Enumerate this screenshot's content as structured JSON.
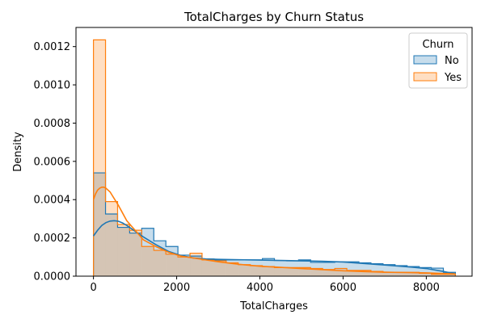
{
  "chart_data": {
    "type": "histogram",
    "title": "TotalCharges by Churn Status",
    "xlabel": "TotalCharges",
    "ylabel": "Density",
    "xlim": [
      -420,
      9100
    ],
    "ylim": [
      0,
      0.0013
    ],
    "x_ticks": [
      0,
      2000,
      4000,
      6000,
      8000
    ],
    "x_tick_labels": [
      "0",
      "2000",
      "4000",
      "6000",
      "8000"
    ],
    "y_ticks": [
      0,
      0.0002,
      0.0004,
      0.0006,
      0.0008,
      0.001,
      0.0012
    ],
    "y_tick_labels": [
      "0.0000",
      "0.0002",
      "0.0004",
      "0.0006",
      "0.0008",
      "0.0010",
      "0.0012"
    ],
    "grid": false,
    "bin_edges": [
      0,
      290,
      580,
      870,
      1160,
      1450,
      1740,
      2030,
      2320,
      2610,
      2900,
      3190,
      3480,
      3770,
      4060,
      4350,
      4640,
      4930,
      5220,
      5510,
      5800,
      6090,
      6380,
      6670,
      6960,
      7250,
      7540,
      7830,
      8120,
      8410,
      8700
    ],
    "series": [
      {
        "name": "No",
        "color": "#1f77b4",
        "densities": [
          0.00054,
          0.000325,
          0.000255,
          0.000225,
          0.00025,
          0.000185,
          0.000155,
          0.00011,
          0.000105,
          9e-05,
          8.5e-05,
          8.5e-05,
          8.5e-05,
          8.5e-05,
          9.2e-05,
          8.2e-05,
          8e-05,
          8.5e-05,
          7.2e-05,
          7.2e-05,
          7.5e-05,
          7.5e-05,
          7e-05,
          6.5e-05,
          6e-05,
          5.5e-05,
          5e-05,
          4.5e-05,
          4.2e-05,
          2e-05
        ],
        "kde_x": [
          0,
          100,
          200,
          300,
          400,
          500,
          600,
          700,
          800,
          1000,
          1200,
          1500,
          1800,
          2100,
          2400,
          2700,
          3000,
          3500,
          4000,
          4500,
          5000,
          5500,
          6000,
          6500,
          7000,
          7500,
          8000,
          8400,
          8700
        ],
        "kde_y": [
          0.00021,
          0.00024,
          0.000265,
          0.00028,
          0.000288,
          0.00029,
          0.000287,
          0.000278,
          0.000265,
          0.000235,
          0.000205,
          0.000165,
          0.00013,
          0.000108,
          9.5e-05,
          9e-05,
          8.8e-05,
          8.6e-05,
          8.4e-05,
          8.2e-05,
          8e-05,
          7.8e-05,
          7.4e-05,
          6.6e-05,
          5.8e-05,
          5e-05,
          4e-05,
          2.5e-05,
          1.2e-05
        ]
      },
      {
        "name": "Yes",
        "color": "#ff7f0e",
        "densities": [
          0.001235,
          0.00039,
          0.00027,
          0.00024,
          0.000155,
          0.000135,
          0.000115,
          0.0001,
          0.00012,
          8.5e-05,
          8e-05,
          7e-05,
          6e-05,
          5.5e-05,
          5e-05,
          4.5e-05,
          4.5e-05,
          4.5e-05,
          4e-05,
          3.5e-05,
          4e-05,
          3e-05,
          3e-05,
          2.5e-05,
          2e-05,
          2e-05,
          2e-05,
          1.5e-05,
          1e-05,
          1e-05
        ],
        "kde_x": [
          0,
          50,
          100,
          150,
          200,
          250,
          300,
          400,
          500,
          600,
          700,
          800,
          1000,
          1200,
          1500,
          1800,
          2100,
          2400,
          2700,
          3000,
          3500,
          4000,
          4500,
          5000,
          5500,
          6000,
          6500,
          7000,
          7500,
          8000,
          8400,
          8700
        ],
        "kde_y": [
          0.0004,
          0.00043,
          0.00045,
          0.00046,
          0.000465,
          0.000465,
          0.00046,
          0.00044,
          0.000405,
          0.00037,
          0.00033,
          0.00029,
          0.00024,
          0.00019,
          0.000155,
          0.000125,
          0.000105,
          9.5e-05,
          8.5e-05,
          7.5e-05,
          6.2e-05,
          5.2e-05,
          4.6e-05,
          4e-05,
          3.4e-05,
          2.8e-05,
          2.4e-05,
          2.1e-05,
          1.9e-05,
          1.7e-05,
          1.4e-05,
          1.2e-05
        ]
      }
    ],
    "legend": {
      "title": "Churn",
      "placement": "top-right",
      "entries": [
        "No",
        "Yes"
      ]
    }
  }
}
